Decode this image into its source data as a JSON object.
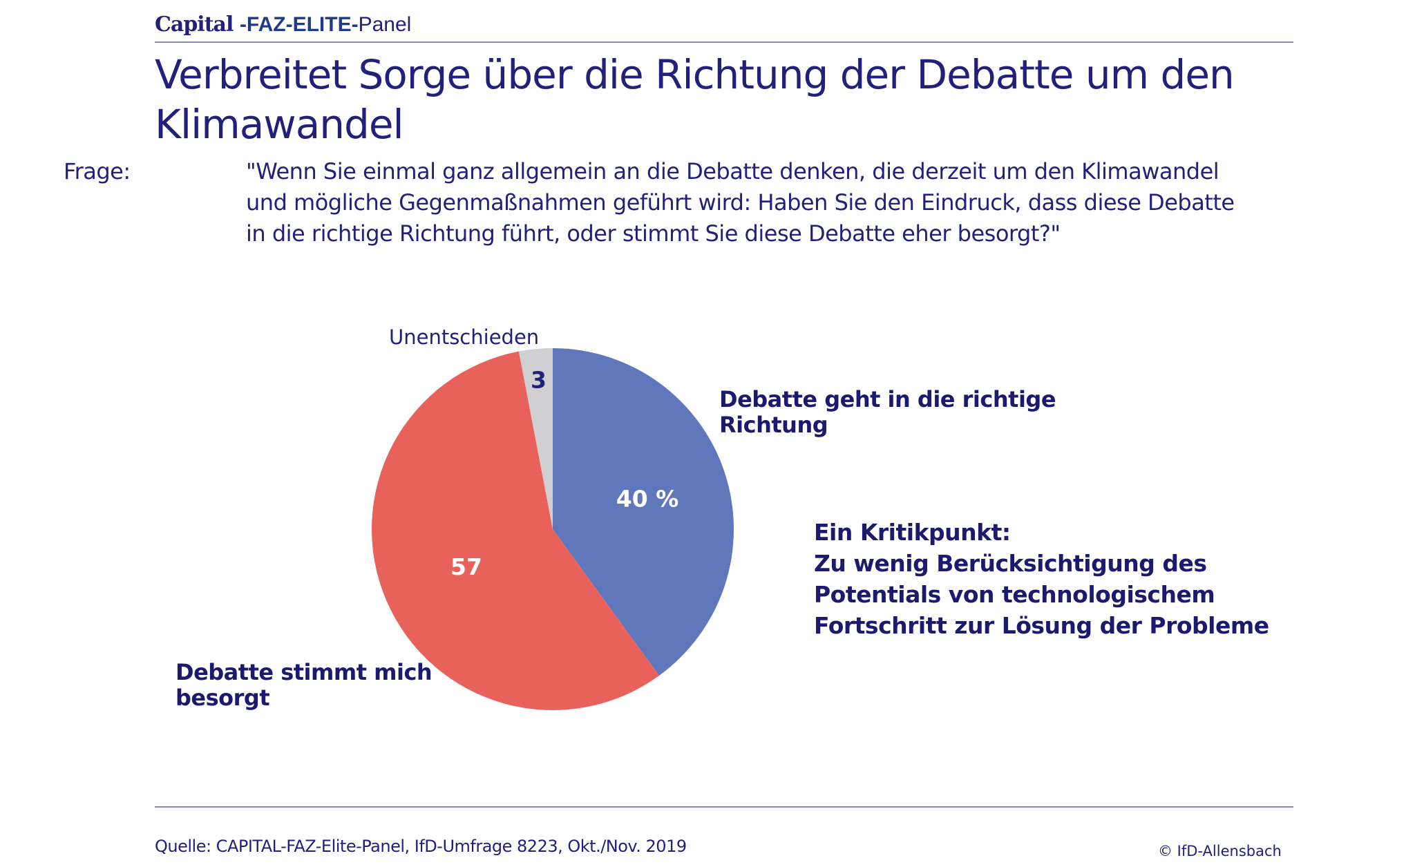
{
  "header": {
    "brand_capital": "Capital",
    "brand_faz": "-FAZ-ELITE-",
    "brand_panel": "Panel"
  },
  "title": "Verbreitet Sorge über die Richtung der Debatte um den Klimawandel",
  "question": {
    "label": "Frage:",
    "text": "\"Wenn Sie einmal ganz allgemein an die Debatte denken, die derzeit um den Klimawandel und mögliche Gegenmaßnahmen geführt wird: Haben Sie den Eindruck, dass diese Debatte in die richtige Richtung führt, oder stimmt Sie diese Debatte eher besorgt?\""
  },
  "labels": {
    "undecided": "Unentschieden",
    "right_direction": "Debatte geht in die richtige Richtung",
    "worried": "Debatte stimmt mich besorgt"
  },
  "note": {
    "heading": "Ein Kritikpunkt:",
    "text": "Zu wenig Berücksichtigung des Potentials von technologischem Fortschritt zur Lösung der Probleme"
  },
  "footer": {
    "source": "Quelle: CAPITAL-FAZ-Elite-Panel, IfD-Umfrage 8223, Okt./Nov. 2019",
    "copyright": "© IfD-Allensbach"
  },
  "colors": {
    "right_direction": "#6077bb",
    "worried": "#e8625b",
    "undecided": "#d0d0d2",
    "text_dark": "#22207a",
    "label_on_slice": "#ffffff"
  },
  "chart_data": {
    "type": "pie",
    "title": "Verbreitet Sorge über die Richtung der Debatte um den Klimawandel",
    "unit": "%",
    "start": "12 o'clock, clockwise",
    "slices": [
      {
        "name": "Debatte geht in die richtige Richtung",
        "value": 40,
        "label": "40 %",
        "color": "#6077bb",
        "label_color": "#ffffff"
      },
      {
        "name": "Debatte stimmt mich besorgt",
        "value": 57,
        "label": "57",
        "color": "#e8625b",
        "label_color": "#ffffff"
      },
      {
        "name": "Unentschieden",
        "value": 3,
        "label": "3",
        "color": "#d0d0d2",
        "label_color": "#22207a"
      }
    ]
  }
}
